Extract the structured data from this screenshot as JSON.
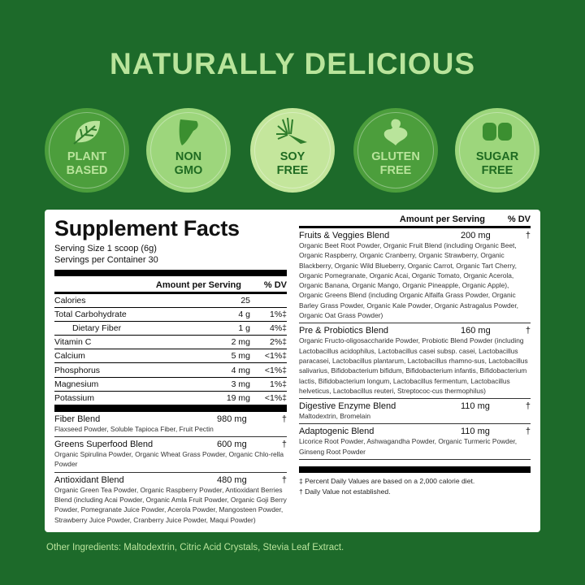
{
  "title": "NATURALLY DELICIOUS",
  "colors": {
    "background": "#1d6a2a",
    "title": "#b9e49b",
    "badge_dark": "#4c9e3c",
    "badge_light": "#9dd67c",
    "badge_lighter": "#c4e69c"
  },
  "badges": [
    {
      "line1": "PLANT",
      "line2": "BASED",
      "icon": "leaf-icon"
    },
    {
      "line1": "NON",
      "line2": "GMO",
      "icon": "gmo-leaf-icon"
    },
    {
      "line1": "SOY",
      "line2": "FREE",
      "icon": "soy-icon"
    },
    {
      "line1": "GLUTEN",
      "line2": "FREE",
      "icon": "wheat-icon"
    },
    {
      "line1": "SUGAR",
      "line2": "FREE",
      "icon": "sugar-cube-icon"
    }
  ],
  "facts": {
    "heading": "Supplement Facts",
    "serving_size": "Serving Size 1 scoop (6g)",
    "servings_per_container": "Servings per Container 30",
    "amount_header": "Amount per Serving",
    "dv_header": "% DV",
    "nutrients": [
      {
        "name": "Calories",
        "amount": "25",
        "dv": ""
      },
      {
        "name": "Total Carbohydrate",
        "amount": "4 g",
        "dv": "1%‡"
      },
      {
        "name": "Dietary Fiber",
        "amount": "1 g",
        "dv": "4%‡"
      },
      {
        "name": "Vitamin C",
        "amount": "2 mg",
        "dv": "2%‡"
      },
      {
        "name": "Calcium",
        "amount": "5 mg",
        "dv": "<1%‡"
      },
      {
        "name": "Phosphorus",
        "amount": "4 mg",
        "dv": "<1%‡"
      },
      {
        "name": "Magnesium",
        "amount": "3 mg",
        "dv": "1%‡"
      },
      {
        "name": "Potassium",
        "amount": "19 mg",
        "dv": "<1%‡"
      }
    ],
    "left_blends": [
      {
        "name": "Fiber Blend",
        "amount": "980 mg",
        "dv": "†",
        "ingredients": "Flaxseed Powder, Soluble Tapioca Fiber, Fruit Pectin"
      },
      {
        "name": "Greens Superfood Blend",
        "amount": "600 mg",
        "dv": "†",
        "ingredients": "Organic Spirulina Powder, Organic Wheat Grass Powder, Organic Chlo-rella Powder"
      },
      {
        "name": "Antioxidant Blend",
        "amount": "480 mg",
        "dv": "†",
        "ingredients": "Organic Green Tea Powder, Organic Raspberry Powder, Antioxidant Berries Blend (including Acai Powder, Organic Amla Fruit Powder, Organic Goji Berry Powder, Pomegranate Juice Powder, Acerola Powder, Mangosteen Powder, Strawberry Juice Powder, Cranberry Juice Powder, Maqui Powder)"
      }
    ],
    "right_blends": [
      {
        "name": "Fruits & Veggies Blend",
        "amount": "200 mg",
        "dv": "†",
        "ingredients": "Organic Beet Root Powder, Organic Fruit Blend (including Organic Beet, Organic Raspberry, Organic Cranberry, Organic Strawberry, Organic Blackberry, Organic Wild Blueberry, Organic Carrot, Organic Tart Cherry, Organic Pomegranate, Organic Acai, Organic Tomato, Organic Acerola, Organic Banana, Organic Mango, Organic Pineapple, Organic Apple), Organic Greens Blend (including Organic Alfalfa Grass Powder, Organic Barley Grass Powder, Organic Kale Powder, Organic Astragalus Powder, Organic Oat Grass Powder)"
      },
      {
        "name": "Pre & Probiotics Blend",
        "amount": "160 mg",
        "dv": "†",
        "ingredients": "Organic Fructo-oligosaccharide Powder, Probiotic Blend Powder (including Lactobacillus acidophilus, Lactobacillus casei subsp. casei, Lactobacillus paracasei, Lactobacillus plantarum, Lactobacillus rhamno-sus, Lactobacillus salivarius, Bifidobacterium bifidum, Bifidobacterium infantis, Bifidobacterium lactis, Bifidobacterium longum, Lactobacillus fermentum, Lactobacillus helveticus, Lactobacillus reuteri, Streptococ-cus thermophilus)"
      },
      {
        "name": "Digestive Enzyme Blend",
        "amount": "110 mg",
        "dv": "†",
        "ingredients": "Maltodextrin, Bromelain"
      },
      {
        "name": "Adaptogenic Blend",
        "amount": "110 mg",
        "dv": "†",
        "ingredients": "Licorice Root Powder, Ashwagandha Powder, Organic Turmeric Powder, Ginseng Root Powder"
      }
    ],
    "footnote1": "‡ Percent Daily Values are based on a 2,000 calorie diet.",
    "footnote2": "† Daily Value not established."
  },
  "other_ingredients": "Other Ingredients: Maltodextrin, Citric Acid Crystals, Stevia Leaf Extract."
}
